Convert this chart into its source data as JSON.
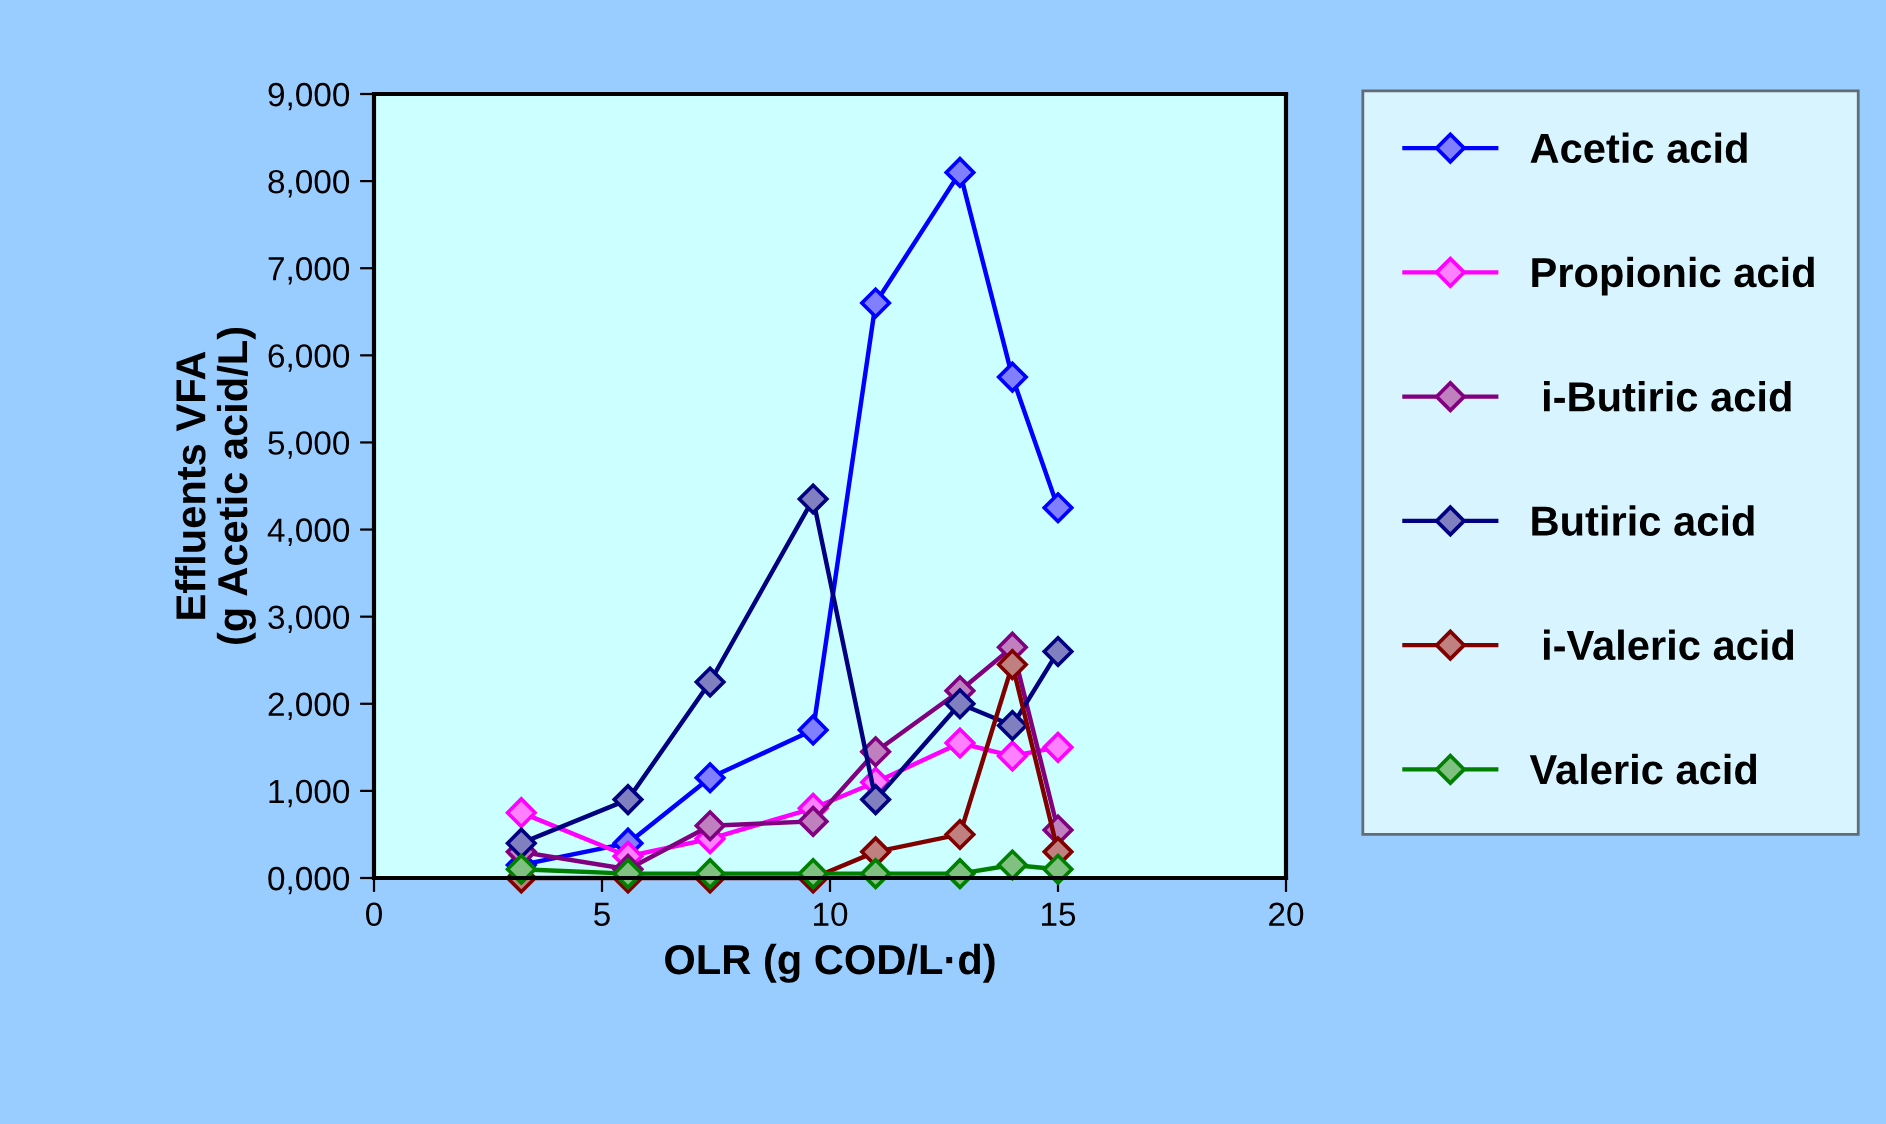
{
  "chart_data": {
    "type": "line",
    "xlabel": "OLR (g COD/L·d)",
    "ylabel": "Effluents VFA\n(g Acetic acid/L)",
    "x": [
      3.23,
      5.57,
      7.37,
      9.63,
      11.0,
      12.85,
      14.0,
      15.0
    ],
    "xlim": [
      0,
      20
    ],
    "xticks": [
      0,
      5,
      10,
      15,
      20
    ],
    "ylim": [
      0,
      9000
    ],
    "yticks": [
      {
        "value": 0,
        "label": "0,000"
      },
      {
        "value": 1000,
        "label": "1,000"
      },
      {
        "value": 2000,
        "label": "2,000"
      },
      {
        "value": 3000,
        "label": "3,000"
      },
      {
        "value": 4000,
        "label": "4,000"
      },
      {
        "value": 5000,
        "label": "5,000"
      },
      {
        "value": 6000,
        "label": "6,000"
      },
      {
        "value": 7000,
        "label": "7,000"
      },
      {
        "value": 8000,
        "label": "8,000"
      },
      {
        "value": 9000,
        "label": "9,000"
      }
    ],
    "marker": "diamond",
    "legend": "right",
    "grid": false,
    "series": [
      {
        "name": "Acetic acid",
        "color": "#0000ff",
        "values": [
          150,
          400,
          1150,
          1700,
          6600,
          8100,
          5750,
          4250
        ]
      },
      {
        "name": "Propionic acid",
        "color": "#ff00ff",
        "values": [
          750,
          250,
          450,
          800,
          1100,
          1550,
          1400,
          1500
        ]
      },
      {
        "name": " i-Butiric acid",
        "color": "#800080",
        "values": [
          300,
          100,
          600,
          650,
          1450,
          2150,
          2650,
          550
        ]
      },
      {
        "name": "Butiric acid",
        "color": "#000080",
        "values": [
          400,
          900,
          2250,
          4350,
          900,
          2000,
          1750,
          2600
        ]
      },
      {
        "name": " i-Valeric acid",
        "color": "#800000",
        "values": [
          0,
          0,
          0,
          0,
          300,
          500,
          2450,
          300
        ]
      },
      {
        "name": "Valeric acid",
        "color": "#008000",
        "values": [
          100,
          50,
          50,
          50,
          50,
          50,
          150,
          100
        ]
      }
    ]
  }
}
